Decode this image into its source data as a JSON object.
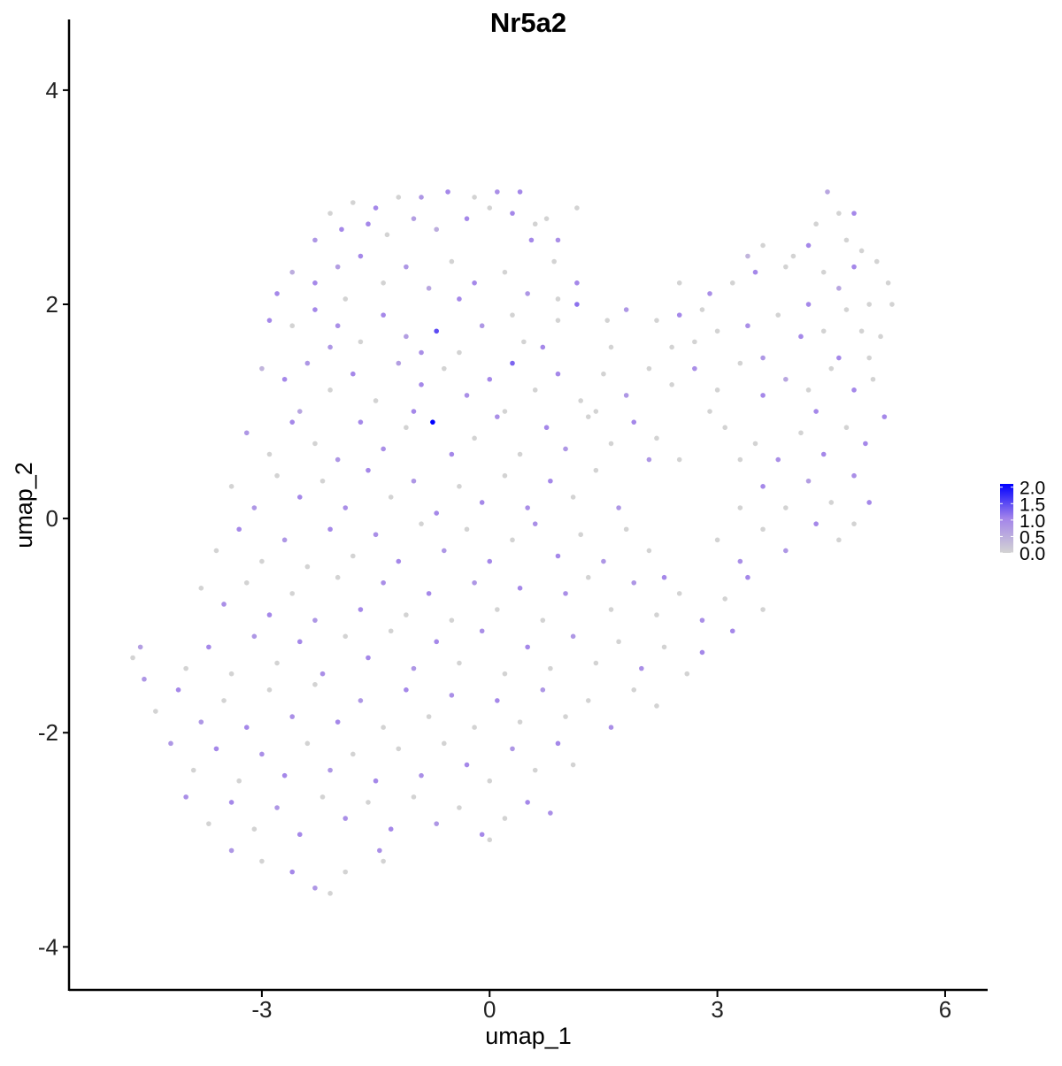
{
  "chart_data": {
    "type": "scatter",
    "title": "Nr5a2",
    "xlabel": "umap_1",
    "ylabel": "umap_2",
    "xlim": [
      -5.54,
      6.56
    ],
    "ylim": [
      -4.41,
      4.66
    ],
    "xticks": [
      -3,
      0,
      3,
      6
    ],
    "yticks": [
      -4,
      -2,
      0,
      2,
      4
    ],
    "grid": false,
    "legend": {
      "placement": "right",
      "type": "colorbar",
      "range": [
        0,
        2.1
      ],
      "ticks": [
        0.0,
        0.5,
        1.0,
        1.5,
        2.0
      ],
      "tick_labels": [
        "0.0",
        "0.5",
        "1.0",
        "1.5",
        "2.0"
      ],
      "low_color": "#d3d3d3",
      "high_color": "#0000ff"
    },
    "points": [
      [
        -2.1,
        2.85,
        0
      ],
      [
        -1.8,
        2.95,
        0
      ],
      [
        -1.5,
        2.9,
        1
      ],
      [
        -1.2,
        3.0,
        0
      ],
      [
        -0.9,
        3.0,
        0.8
      ],
      [
        -0.55,
        3.05,
        1
      ],
      [
        -0.2,
        3.0,
        0
      ],
      [
        0.1,
        3.05,
        0.9
      ],
      [
        0.4,
        3.05,
        1
      ],
      [
        0.75,
        2.8,
        0
      ],
      [
        1.15,
        2.9,
        0
      ],
      [
        -1.6,
        2.75,
        1
      ],
      [
        -1.0,
        2.8,
        0.7
      ],
      [
        0.0,
        2.9,
        0
      ],
      [
        0.3,
        2.85,
        1
      ],
      [
        0.55,
        2.6,
        1
      ],
      [
        0.9,
        2.6,
        0.9
      ],
      [
        -2.3,
        2.6,
        0.8
      ],
      [
        -1.95,
        2.7,
        1
      ],
      [
        -1.35,
        2.65,
        0
      ],
      [
        -0.7,
        2.7,
        0.5
      ],
      [
        -0.3,
        2.8,
        1
      ],
      [
        0.6,
        2.75,
        0
      ],
      [
        4.45,
        3.05,
        0.6
      ],
      [
        4.6,
        2.85,
        0
      ],
      [
        4.8,
        2.85,
        1
      ],
      [
        4.3,
        2.75,
        0
      ],
      [
        4.7,
        2.6,
        0
      ],
      [
        3.6,
        2.55,
        0
      ],
      [
        4.9,
        2.5,
        0
      ],
      [
        3.4,
        2.45,
        0.4
      ],
      [
        4.2,
        2.55,
        1
      ],
      [
        4.0,
        2.45,
        0
      ],
      [
        -2.6,
        2.3,
        0.5
      ],
      [
        -2.3,
        2.2,
        1
      ],
      [
        -2.0,
        2.35,
        0.7
      ],
      [
        -1.7,
        2.45,
        1
      ],
      [
        -1.4,
        2.2,
        0
      ],
      [
        -1.1,
        2.35,
        0.8
      ],
      [
        -0.8,
        2.15,
        0.6
      ],
      [
        -0.5,
        2.4,
        0
      ],
      [
        -0.2,
        2.2,
        1
      ],
      [
        0.2,
        2.3,
        0
      ],
      [
        0.5,
        2.1,
        0.8
      ],
      [
        0.85,
        2.4,
        0
      ],
      [
        1.15,
        2.2,
        1
      ],
      [
        -2.8,
        2.1,
        1
      ],
      [
        -1.9,
        2.05,
        0
      ],
      [
        -0.4,
        2.05,
        1
      ],
      [
        0.9,
        2.05,
        0
      ],
      [
        2.9,
        2.1,
        0.9
      ],
      [
        3.2,
        2.2,
        0
      ],
      [
        3.5,
        2.3,
        1
      ],
      [
        3.9,
        2.35,
        0
      ],
      [
        4.4,
        2.3,
        0
      ],
      [
        4.8,
        2.35,
        1
      ],
      [
        5.1,
        2.4,
        0
      ],
      [
        5.25,
        2.2,
        0
      ],
      [
        4.6,
        2.15,
        0.6
      ],
      [
        2.5,
        2.2,
        0
      ],
      [
        2.8,
        1.95,
        0
      ],
      [
        4.2,
        2.0,
        1
      ],
      [
        5.0,
        2.0,
        0
      ],
      [
        5.3,
        2.0,
        0
      ],
      [
        -2.9,
        1.85,
        1
      ],
      [
        -2.6,
        1.8,
        0
      ],
      [
        -2.3,
        1.95,
        1
      ],
      [
        -2.0,
        1.8,
        0.9
      ],
      [
        -1.7,
        1.65,
        0
      ],
      [
        -1.4,
        1.9,
        1
      ],
      [
        -1.1,
        1.7,
        0.7
      ],
      [
        -0.7,
        1.75,
        1.5
      ],
      [
        -0.4,
        1.55,
        0
      ],
      [
        -0.1,
        1.8,
        0.8
      ],
      [
        0.3,
        1.9,
        0
      ],
      [
        0.7,
        1.6,
        1
      ],
      [
        1.15,
        2.0,
        1.2
      ],
      [
        0.9,
        1.85,
        0
      ],
      [
        -2.1,
        1.6,
        0.8
      ],
      [
        -0.9,
        1.55,
        0.9
      ],
      [
        0.45,
        1.65,
        0
      ],
      [
        1.55,
        1.85,
        0
      ],
      [
        1.8,
        1.95,
        0.8
      ],
      [
        2.2,
        1.85,
        0
      ],
      [
        2.5,
        1.9,
        1
      ],
      [
        2.7,
        1.65,
        0
      ],
      [
        3.0,
        1.75,
        0
      ],
      [
        3.4,
        1.8,
        0.9
      ],
      [
        3.8,
        1.9,
        0
      ],
      [
        4.1,
        1.7,
        1
      ],
      [
        4.4,
        1.75,
        0
      ],
      [
        4.7,
        1.95,
        0
      ],
      [
        4.9,
        1.75,
        0
      ],
      [
        5.15,
        1.7,
        0
      ],
      [
        2.4,
        1.6,
        0
      ],
      [
        3.6,
        1.5,
        0.8
      ],
      [
        4.6,
        1.5,
        1
      ],
      [
        5.0,
        1.5,
        0
      ],
      [
        1.6,
        1.6,
        0
      ],
      [
        -3.0,
        1.4,
        0.4
      ],
      [
        -2.7,
        1.3,
        1
      ],
      [
        -2.4,
        1.45,
        0.8
      ],
      [
        -2.1,
        1.2,
        0
      ],
      [
        -1.8,
        1.35,
        1
      ],
      [
        -1.5,
        1.1,
        0
      ],
      [
        -1.2,
        1.45,
        0.7
      ],
      [
        -0.9,
        1.25,
        1
      ],
      [
        -0.6,
        1.4,
        0
      ],
      [
        -0.3,
        1.15,
        0.9
      ],
      [
        0.0,
        1.3,
        1
      ],
      [
        0.3,
        1.45,
        1.3
      ],
      [
        0.6,
        1.2,
        0
      ],
      [
        0.9,
        1.35,
        1
      ],
      [
        1.2,
        1.1,
        0
      ],
      [
        1.5,
        1.35,
        0
      ],
      [
        1.8,
        1.15,
        0.8
      ],
      [
        2.1,
        1.4,
        0
      ],
      [
        2.4,
        1.25,
        0
      ],
      [
        2.7,
        1.4,
        0.9
      ],
      [
        3.0,
        1.2,
        0
      ],
      [
        3.3,
        1.45,
        0
      ],
      [
        3.6,
        1.15,
        1
      ],
      [
        3.9,
        1.3,
        0.6
      ],
      [
        4.2,
        1.2,
        0
      ],
      [
        4.5,
        1.4,
        0
      ],
      [
        4.8,
        1.2,
        1
      ],
      [
        5.05,
        1.3,
        0
      ],
      [
        -2.5,
        1.0,
        0.6
      ],
      [
        -1.0,
        1.0,
        1
      ],
      [
        0.2,
        1.0,
        0
      ],
      [
        1.4,
        1.0,
        0
      ],
      [
        2.9,
        1.0,
        0
      ],
      [
        4.3,
        1.0,
        1
      ],
      [
        -3.2,
        0.8,
        0.8
      ],
      [
        -2.9,
        0.6,
        0
      ],
      [
        -2.6,
        0.9,
        1
      ],
      [
        -2.3,
        0.7,
        0
      ],
      [
        -2.0,
        0.55,
        0.8
      ],
      [
        -1.7,
        0.9,
        1
      ],
      [
        -1.4,
        0.65,
        0.9
      ],
      [
        -1.1,
        0.85,
        0
      ],
      [
        -0.75,
        0.9,
        2.1
      ],
      [
        -0.5,
        0.6,
        1
      ],
      [
        -0.2,
        0.75,
        0
      ],
      [
        0.1,
        0.95,
        0.9
      ],
      [
        0.4,
        0.6,
        0
      ],
      [
        0.75,
        0.85,
        1
      ],
      [
        1.0,
        0.65,
        0.8
      ],
      [
        1.3,
        0.95,
        0
      ],
      [
        1.6,
        0.7,
        0
      ],
      [
        1.9,
        0.9,
        1
      ],
      [
        2.2,
        0.75,
        0
      ],
      [
        2.5,
        0.55,
        0
      ],
      [
        3.1,
        0.85,
        0
      ],
      [
        3.5,
        0.7,
        0
      ],
      [
        3.8,
        0.55,
        0.9
      ],
      [
        4.1,
        0.8,
        0
      ],
      [
        4.4,
        0.6,
        1
      ],
      [
        4.7,
        0.85,
        0
      ],
      [
        4.95,
        0.7,
        1
      ],
      [
        5.2,
        0.95,
        1
      ],
      [
        2.1,
        0.55,
        0.8
      ],
      [
        3.3,
        0.55,
        0
      ],
      [
        -3.4,
        0.3,
        0
      ],
      [
        -3.1,
        0.1,
        0.8
      ],
      [
        -2.8,
        0.4,
        0
      ],
      [
        -2.5,
        0.2,
        1
      ],
      [
        -2.2,
        0.35,
        0
      ],
      [
        -1.9,
        0.1,
        0.9
      ],
      [
        -1.6,
        0.45,
        1
      ],
      [
        -1.3,
        0.2,
        0
      ],
      [
        -1.0,
        0.35,
        0.8
      ],
      [
        -0.7,
        0.05,
        1
      ],
      [
        -0.4,
        0.3,
        0
      ],
      [
        -0.1,
        0.15,
        1
      ],
      [
        0.2,
        0.4,
        0
      ],
      [
        0.5,
        0.1,
        0.9
      ],
      [
        0.8,
        0.35,
        1
      ],
      [
        1.1,
        0.2,
        0
      ],
      [
        1.4,
        0.45,
        0
      ],
      [
        1.7,
        0.1,
        0.8
      ],
      [
        3.6,
        0.3,
        1
      ],
      [
        3.9,
        0.1,
        0
      ],
      [
        4.2,
        0.35,
        0.7
      ],
      [
        4.5,
        0.15,
        0
      ],
      [
        4.8,
        0.4,
        0.9
      ],
      [
        5.0,
        0.15,
        1
      ],
      [
        3.3,
        0.1,
        0
      ],
      [
        -3.6,
        -0.3,
        0
      ],
      [
        -3.3,
        -0.1,
        1
      ],
      [
        -3.0,
        -0.4,
        0
      ],
      [
        -2.7,
        -0.2,
        0.8
      ],
      [
        -2.4,
        -0.45,
        0
      ],
      [
        -2.1,
        -0.1,
        1
      ],
      [
        -1.8,
        -0.35,
        0
      ],
      [
        -1.5,
        -0.15,
        0.9
      ],
      [
        -1.2,
        -0.4,
        1
      ],
      [
        -0.9,
        -0.05,
        0
      ],
      [
        -0.6,
        -0.3,
        0.8
      ],
      [
        -0.3,
        -0.1,
        0
      ],
      [
        0.0,
        -0.4,
        1
      ],
      [
        0.3,
        -0.2,
        0
      ],
      [
        0.6,
        -0.05,
        0.9
      ],
      [
        0.9,
        -0.35,
        1
      ],
      [
        1.2,
        -0.15,
        0
      ],
      [
        1.5,
        -0.4,
        0.8
      ],
      [
        1.8,
        -0.1,
        0
      ],
      [
        2.1,
        -0.3,
        0
      ],
      [
        3.0,
        -0.2,
        0
      ],
      [
        3.3,
        -0.4,
        0.9
      ],
      [
        3.6,
        -0.1,
        0
      ],
      [
        3.9,
        -0.3,
        0.8
      ],
      [
        4.3,
        -0.05,
        1
      ],
      [
        4.6,
        -0.2,
        0
      ],
      [
        4.8,
        -0.05,
        0
      ],
      [
        -3.8,
        -0.65,
        0
      ],
      [
        -3.5,
        -0.8,
        0.9
      ],
      [
        -3.2,
        -0.6,
        0
      ],
      [
        -2.9,
        -0.9,
        1
      ],
      [
        -2.6,
        -0.7,
        0
      ],
      [
        -2.3,
        -0.95,
        0.8
      ],
      [
        -2.0,
        -0.55,
        0
      ],
      [
        -1.7,
        -0.85,
        1
      ],
      [
        -1.4,
        -0.6,
        0.9
      ],
      [
        -1.1,
        -0.9,
        0
      ],
      [
        -0.8,
        -0.7,
        1
      ],
      [
        -0.5,
        -0.95,
        0
      ],
      [
        -0.2,
        -0.6,
        0.8
      ],
      [
        0.1,
        -0.85,
        0
      ],
      [
        0.4,
        -0.65,
        1
      ],
      [
        0.7,
        -0.95,
        0
      ],
      [
        1.0,
        -0.7,
        0.9
      ],
      [
        1.3,
        -0.55,
        0
      ],
      [
        1.6,
        -0.85,
        0
      ],
      [
        1.9,
        -0.6,
        0.8
      ],
      [
        2.2,
        -0.9,
        0
      ],
      [
        2.5,
        -0.7,
        0
      ],
      [
        2.8,
        -0.95,
        0.9
      ],
      [
        3.1,
        -0.75,
        0
      ],
      [
        3.4,
        -0.55,
        1
      ],
      [
        3.6,
        -0.85,
        0
      ],
      [
        2.3,
        -0.55,
        1
      ],
      [
        -4.7,
        -1.3,
        0
      ],
      [
        -4.6,
        -1.2,
        0.7
      ],
      [
        -4.55,
        -1.5,
        0.8
      ],
      [
        -4.0,
        -1.4,
        0
      ],
      [
        -3.7,
        -1.2,
        1
      ],
      [
        -3.4,
        -1.45,
        0
      ],
      [
        -3.1,
        -1.1,
        0.8
      ],
      [
        -2.8,
        -1.35,
        0
      ],
      [
        -2.5,
        -1.15,
        1
      ],
      [
        -2.2,
        -1.45,
        0.9
      ],
      [
        -1.9,
        -1.1,
        0
      ],
      [
        -1.6,
        -1.3,
        1
      ],
      [
        -1.3,
        -1.05,
        0
      ],
      [
        -1.0,
        -1.4,
        0.8
      ],
      [
        -0.7,
        -1.15,
        1
      ],
      [
        -0.4,
        -1.35,
        0
      ],
      [
        -0.1,
        -1.05,
        0.9
      ],
      [
        0.2,
        -1.45,
        0
      ],
      [
        0.5,
        -1.2,
        1
      ],
      [
        0.8,
        -1.4,
        0
      ],
      [
        1.1,
        -1.1,
        0.8
      ],
      [
        1.4,
        -1.35,
        0
      ],
      [
        1.7,
        -1.15,
        0
      ],
      [
        2.0,
        -1.4,
        0.9
      ],
      [
        2.3,
        -1.2,
        0
      ],
      [
        2.6,
        -1.45,
        0
      ],
      [
        2.8,
        -1.25,
        1
      ],
      [
        3.2,
        -1.05,
        1
      ],
      [
        -4.4,
        -1.8,
        0
      ],
      [
        -4.1,
        -1.6,
        1
      ],
      [
        -3.8,
        -1.9,
        0.8
      ],
      [
        -3.5,
        -1.7,
        0
      ],
      [
        -3.2,
        -1.95,
        1
      ],
      [
        -2.9,
        -1.6,
        0
      ],
      [
        -2.6,
        -1.85,
        0.9
      ],
      [
        -2.3,
        -1.55,
        0
      ],
      [
        -2.0,
        -1.9,
        1
      ],
      [
        -1.7,
        -1.7,
        0.8
      ],
      [
        -1.4,
        -1.95,
        0
      ],
      [
        -1.1,
        -1.6,
        1
      ],
      [
        -0.8,
        -1.85,
        0
      ],
      [
        -0.5,
        -1.65,
        0.9
      ],
      [
        -0.2,
        -1.95,
        0
      ],
      [
        0.1,
        -1.7,
        1
      ],
      [
        0.4,
        -1.9,
        0
      ],
      [
        0.7,
        -1.6,
        0.8
      ],
      [
        1.0,
        -1.85,
        0
      ],
      [
        1.3,
        -1.7,
        0
      ],
      [
        1.6,
        -1.95,
        0.9
      ],
      [
        1.9,
        -1.6,
        0
      ],
      [
        2.2,
        -1.75,
        0
      ],
      [
        -4.2,
        -2.1,
        0.8
      ],
      [
        -3.9,
        -2.35,
        0
      ],
      [
        -3.6,
        -2.15,
        1
      ],
      [
        -3.3,
        -2.45,
        0
      ],
      [
        -3.0,
        -2.2,
        0.9
      ],
      [
        -2.7,
        -2.4,
        1
      ],
      [
        -2.4,
        -2.1,
        0
      ],
      [
        -2.1,
        -2.35,
        0.8
      ],
      [
        -1.8,
        -2.2,
        0
      ],
      [
        -1.5,
        -2.45,
        1
      ],
      [
        -1.2,
        -2.15,
        0
      ],
      [
        -0.9,
        -2.4,
        0.9
      ],
      [
        -0.6,
        -2.1,
        0
      ],
      [
        -0.3,
        -2.3,
        1
      ],
      [
        0.0,
        -2.45,
        0
      ],
      [
        0.3,
        -2.15,
        0.8
      ],
      [
        0.6,
        -2.35,
        0
      ],
      [
        0.9,
        -2.1,
        1
      ],
      [
        1.1,
        -2.3,
        0
      ],
      [
        -4.0,
        -2.6,
        0.9
      ],
      [
        -3.7,
        -2.85,
        0
      ],
      [
        -3.4,
        -2.65,
        1
      ],
      [
        -3.1,
        -2.9,
        0
      ],
      [
        -2.8,
        -2.7,
        0.8
      ],
      [
        -2.5,
        -2.95,
        1
      ],
      [
        -2.2,
        -2.6,
        0
      ],
      [
        -1.9,
        -2.8,
        0.9
      ],
      [
        -1.6,
        -2.65,
        0
      ],
      [
        -1.3,
        -2.9,
        1
      ],
      [
        -1.0,
        -2.6,
        0
      ],
      [
        -0.7,
        -2.85,
        0.8
      ],
      [
        -0.4,
        -2.7,
        0
      ],
      [
        -0.1,
        -2.95,
        1
      ],
      [
        0.2,
        -2.8,
        0
      ],
      [
        0.5,
        -2.65,
        1
      ],
      [
        0.8,
        -2.75,
        0.9
      ],
      [
        -3.4,
        -3.1,
        0.8
      ],
      [
        -3.0,
        -3.2,
        0
      ],
      [
        -2.6,
        -3.3,
        1
      ],
      [
        -2.3,
        -3.45,
        0.8
      ],
      [
        -2.1,
        -3.5,
        0
      ],
      [
        -1.9,
        -3.3,
        0
      ],
      [
        -1.45,
        -3.1,
        0.9
      ],
      [
        -1.4,
        -3.2,
        0
      ],
      [
        0.0,
        -3.0,
        0
      ]
    ]
  }
}
